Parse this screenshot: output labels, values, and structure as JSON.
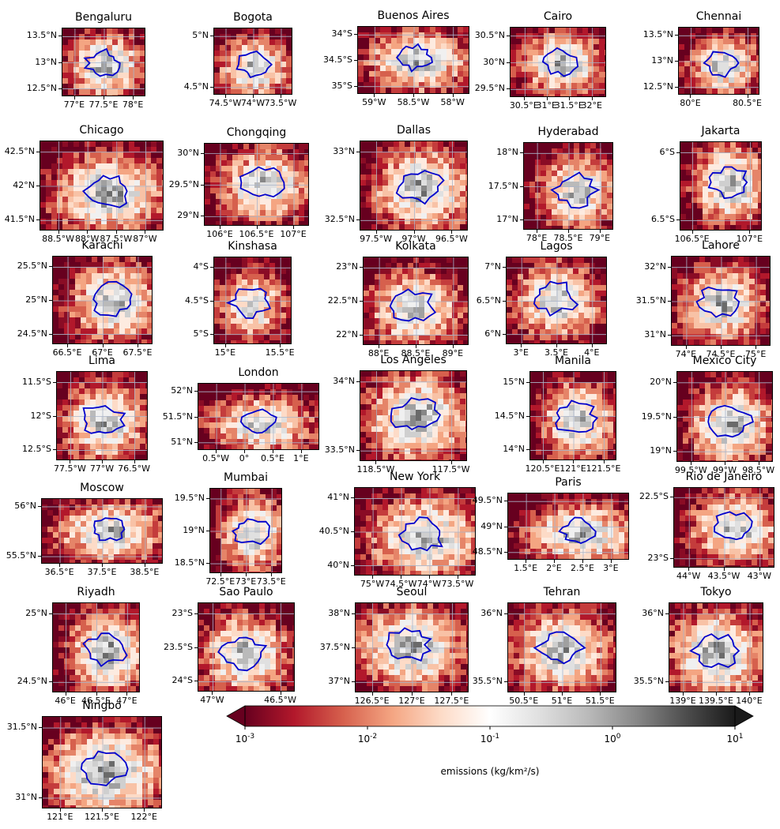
{
  "colorbar": {
    "tick_labels": [
      "10^-3",
      "10^-2",
      "10^-1",
      "10^0",
      "10^1"
    ],
    "label": "emissions (kg/km²/s)",
    "scale": "log",
    "range": [
      "1e-3",
      "1e1"
    ],
    "colors": [
      "#67001f",
      "#b2182b",
      "#d6604d",
      "#f4a582",
      "#fddbc7",
      "#ffffff",
      "#e0e0e0",
      "#bababa",
      "#878787",
      "#4d4d4d",
      "#1a1a1a"
    ],
    "extend": "both"
  },
  "boundary_color": "#0000cc",
  "panels": [
    {
      "city": "Bengaluru",
      "y": [
        "13.5°N",
        "13°N",
        "12.5°N"
      ],
      "x": [
        "77°E",
        "77.5°E",
        "78°E"
      ],
      "urban": 0.55
    },
    {
      "city": "Bogota",
      "y": [
        "5°N",
        "4.5°N"
      ],
      "x": [
        "74.5°W",
        "74°W",
        "73.5°W"
      ],
      "urban": 0.45
    },
    {
      "city": "Buenos Aires",
      "y": [
        "34°S",
        "34.5°S",
        "35°S"
      ],
      "x": [
        "59°W",
        "58.5°W",
        "58°W"
      ],
      "urban": 0.5
    },
    {
      "city": "Cairo",
      "y": [
        "30.5°N",
        "30°N",
        "29.5°N"
      ],
      "x": [
        "30.5°E",
        "31°E",
        "31.5°E",
        "32°E"
      ],
      "urban": 0.45
    },
    {
      "city": "Chennai",
      "y": [
        "13.5°N",
        "13°N",
        "12.5°N"
      ],
      "x": [
        "80°E",
        "80.5°E"
      ],
      "urban": 0.4
    },
    {
      "city": "Chicago",
      "y": [
        "42.5°N",
        "42°N",
        "41.5°N"
      ],
      "x": [
        "88.5°W",
        "88°W",
        "87.5°W",
        "87°W"
      ],
      "urban": 0.5
    },
    {
      "city": "Chongqing",
      "y": [
        "30°N",
        "29.5°N",
        "29°N"
      ],
      "x": [
        "106°E",
        "106.5°E",
        "107°E"
      ],
      "urban": 0.4
    },
    {
      "city": "Dallas",
      "y": [
        "33°N",
        "32.5°N"
      ],
      "x": [
        "97.5°W",
        "97°W",
        "96.5°W"
      ],
      "urban": 0.55
    },
    {
      "city": "Hyderabad",
      "y": [
        "18°N",
        "17.5°N",
        "17°N"
      ],
      "x": [
        "78°E",
        "78.5°E",
        "79°E"
      ],
      "urban": 0.35
    },
    {
      "city": "Jakarta",
      "y": [
        "6°S",
        "6.5°S"
      ],
      "x": [
        "106.5°E",
        "107°E"
      ],
      "urban": 0.5
    },
    {
      "city": "Karachi",
      "y": [
        "25.5°N",
        "25°N",
        "24.5°N"
      ],
      "x": [
        "66.5°E",
        "67°E",
        "67.5°E"
      ],
      "urban": 0.45
    },
    {
      "city": "Kinshasa",
      "y": [
        "4°S",
        "4.5°S",
        "5°S"
      ],
      "x": [
        "15°E",
        "15.5°E"
      ],
      "urban": 0.15
    },
    {
      "city": "Kolkata",
      "y": [
        "23°N",
        "22.5°N",
        "22°N"
      ],
      "x": [
        "88°E",
        "88.5°E",
        "89°E"
      ],
      "urban": 0.35
    },
    {
      "city": "Lagos",
      "y": [
        "7°N",
        "6.5°N",
        "6°N"
      ],
      "x": [
        "3°E",
        "3.5°E",
        "4°E"
      ],
      "urban": 0.35
    },
    {
      "city": "Lahore",
      "y": [
        "32°N",
        "31.5°N",
        "31°N"
      ],
      "x": [
        "74°E",
        "74.5°E",
        "75°E"
      ],
      "urban": 0.35
    },
    {
      "city": "Lima",
      "y": [
        "11.5°S",
        "12°S",
        "12.5°S"
      ],
      "x": [
        "77.5°W",
        "77°W",
        "76.5°W"
      ],
      "urban": 0.45
    },
    {
      "city": "London",
      "y": [
        "52°N",
        "51.5°N",
        "51°N"
      ],
      "x": [
        "0.5°W",
        "0°",
        "0.5°E",
        "1°E"
      ],
      "urban": 0.3
    },
    {
      "city": "Los Angeles",
      "y": [
        "34°N",
        "33.5°N"
      ],
      "x": [
        "118.5°W",
        "117.5°W"
      ],
      "urban": 0.65
    },
    {
      "city": "Manila",
      "y": [
        "15°N",
        "14.5°N",
        "14°N"
      ],
      "x": [
        "120.5°E",
        "121°E",
        "121.5°E"
      ],
      "urban": 0.4
    },
    {
      "city": "Mexico City",
      "y": [
        "20°N",
        "19.5°N",
        "19°N"
      ],
      "x": [
        "99.5°W",
        "99°W",
        "98.5°W"
      ],
      "urban": 0.45
    },
    {
      "city": "Moscow",
      "y": [
        "56°N",
        "55.5°N"
      ],
      "x": [
        "36.5°E",
        "37.5°E",
        "38.5°E"
      ],
      "urban": 0.45
    },
    {
      "city": "Mumbai",
      "y": [
        "19.5°N",
        "19°N",
        "18.5°N"
      ],
      "x": [
        "72.5°E",
        "73°E",
        "73.5°E"
      ],
      "urban": 0.4
    },
    {
      "city": "New York",
      "y": [
        "41°N",
        "40.5°N",
        "40°N"
      ],
      "x": [
        "75°W",
        "74.5°W",
        "74°W",
        "73.5°W"
      ],
      "urban": 0.55
    },
    {
      "city": "Paris",
      "y": [
        "49.5°N",
        "49°N",
        "48.5°N"
      ],
      "x": [
        "1.5°E",
        "2°E",
        "2.5°E",
        "3°E"
      ],
      "urban": 0.45
    },
    {
      "city": "Rio de Janeiro",
      "y": [
        "22.5°S",
        "23°S"
      ],
      "x": [
        "44°W",
        "43.5°W",
        "43°W"
      ],
      "urban": 0.4
    },
    {
      "city": "Riyadh",
      "y": [
        "25°N",
        "24.5°N"
      ],
      "x": [
        "46°E",
        "46.5°E",
        "47°E"
      ],
      "urban": 0.5
    },
    {
      "city": "Sao Paulo",
      "y": [
        "23°S",
        "23.5°S",
        "24°S"
      ],
      "x": [
        "47°W",
        "46.5°W"
      ],
      "urban": 0.45
    },
    {
      "city": "Seoul",
      "y": [
        "38°N",
        "37.5°N",
        "37°N"
      ],
      "x": [
        "126.5°E",
        "127°E",
        "127.5°E"
      ],
      "urban": 0.55
    },
    {
      "city": "Tehran",
      "y": [
        "36°N",
        "35.5°N"
      ],
      "x": [
        "50.5°E",
        "51°E",
        "51.5°E"
      ],
      "urban": 0.45
    },
    {
      "city": "Tokyo",
      "y": [
        "36°N",
        "35.5°N"
      ],
      "x": [
        "139°E",
        "139.5°E",
        "140°E"
      ],
      "urban": 0.7
    },
    {
      "city": "Ningbo",
      "y": [
        "31.5°N",
        "31°N"
      ],
      "x": [
        "121°E",
        "121.5°E",
        "122°E"
      ],
      "urban": 0.7
    }
  ]
}
